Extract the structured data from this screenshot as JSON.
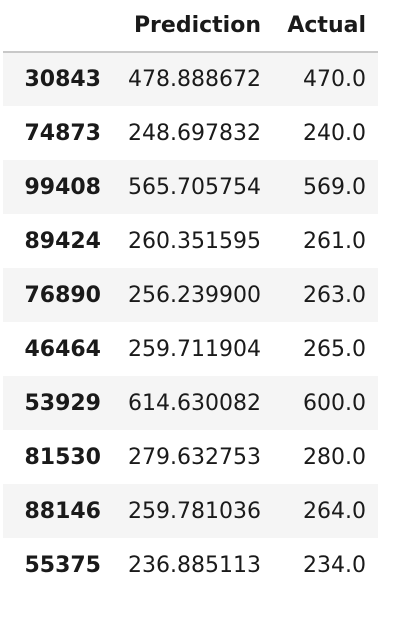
{
  "table": {
    "columns": [
      "",
      "Prediction",
      "Actual"
    ],
    "rows": [
      {
        "index": "30843",
        "prediction": "478.888672",
        "actual": "470.0"
      },
      {
        "index": "74873",
        "prediction": "248.697832",
        "actual": "240.0"
      },
      {
        "index": "99408",
        "prediction": "565.705754",
        "actual": "569.0"
      },
      {
        "index": "89424",
        "prediction": "260.351595",
        "actual": "261.0"
      },
      {
        "index": "76890",
        "prediction": "256.239900",
        "actual": "263.0"
      },
      {
        "index": "46464",
        "prediction": "259.711904",
        "actual": "265.0"
      },
      {
        "index": "53929",
        "prediction": "614.630082",
        "actual": "600.0"
      },
      {
        "index": "81530",
        "prediction": "279.632753",
        "actual": "280.0"
      },
      {
        "index": "88146",
        "prediction": "259.781036",
        "actual": "264.0"
      },
      {
        "index": "55375",
        "prediction": "236.885113",
        "actual": "234.0"
      }
    ]
  },
  "colors": {
    "stripe": "#f5f5f5",
    "header_rule": "#c8c8c8",
    "text": "#1a1a1a"
  }
}
